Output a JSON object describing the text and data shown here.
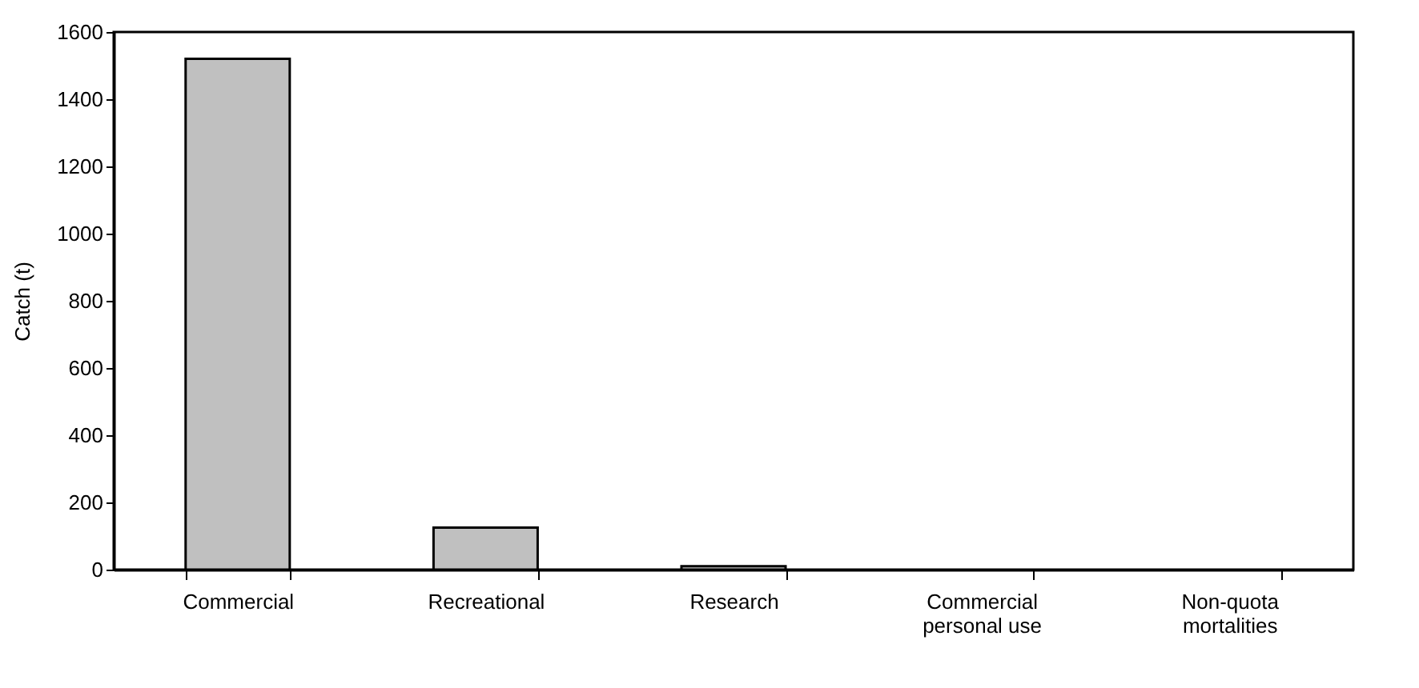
{
  "chart_data": {
    "type": "bar",
    "ylabel": "Catch (t)",
    "categories": [
      "Commercial",
      "Recreational",
      "Research",
      "Commercial personal use",
      "Non-quota mortalities"
    ],
    "values": [
      1520,
      125,
      10,
      0,
      0
    ],
    "color": "#c0c0c0",
    "ylim": [
      0,
      1600
    ],
    "yticks": [
      0,
      200,
      400,
      600,
      800,
      1000,
      1200,
      1400,
      1600
    ],
    "grid": false
  }
}
